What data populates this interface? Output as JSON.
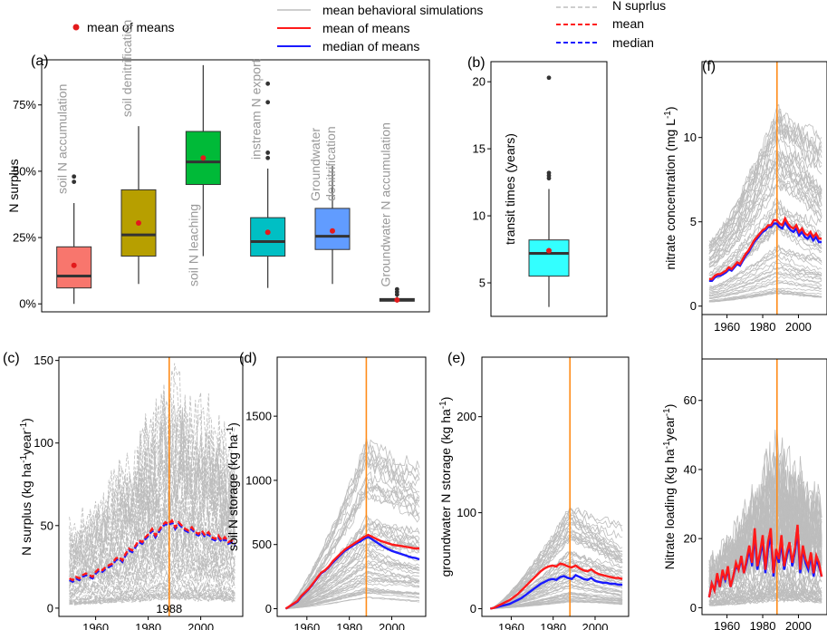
{
  "colors": {
    "sim": "#bdbdbd",
    "mean": "#ff1a1a",
    "median": "#1a1aff",
    "marker": "#ff8c1a",
    "mean_dot": "#e31a1c"
  },
  "legend": {
    "mean_of_means": "mean of  means",
    "sim": "mean behavioral simulations",
    "mean_line": "mean of means",
    "median_line": "median of means",
    "nsurplus": "N suprlus",
    "mean_dash": "mean",
    "median_dash": "median"
  },
  "chart_data": [
    {
      "id": "a",
      "panel_label": "(a)",
      "type": "box",
      "ylabel": "N surplus",
      "ylim": [
        -3,
        92
      ],
      "yticks": [
        0,
        25,
        50,
        75
      ],
      "yticklabels": [
        "0%",
        "25%",
        "50%",
        "75%"
      ],
      "boxes": [
        {
          "label": "soil N accumulation",
          "color": "#f8766d",
          "min": 0,
          "q1": 6,
          "median": 10.5,
          "q3": 21.5,
          "max": 38,
          "mean": 14.5,
          "outliers": [
            46,
            48
          ]
        },
        {
          "label": "soil denitrification",
          "color": "#b79f00",
          "min": 7.5,
          "q1": 18,
          "median": 26,
          "q3": 43,
          "max": 67,
          "mean": 30.5,
          "outliers": []
        },
        {
          "label": "soil N leaching",
          "color": "#00ba38",
          "min": 18,
          "q1": 45,
          "median": 53.5,
          "q3": 65,
          "max": 90,
          "mean": 55,
          "outliers": []
        },
        {
          "label": "instream N export",
          "color": "#00bfc4",
          "min": 6,
          "q1": 18,
          "median": 23.5,
          "q3": 32.5,
          "max": 51,
          "mean": 27,
          "outliers": [
            55,
            57,
            76,
            83
          ]
        },
        {
          "label": "Groundwater denitrification",
          "color": "#619cff",
          "min": 7.5,
          "q1": 20.5,
          "median": 25.5,
          "q3": 36,
          "max": 52,
          "mean": 27.5,
          "outliers": []
        },
        {
          "label": "Groundwater N accumulation",
          "color": "#f564e3",
          "min": 0.5,
          "q1": 1,
          "median": 1.5,
          "q3": 2,
          "max": 3,
          "mean": 1.5,
          "outliers": [
            3.5,
            4.5,
            5.5
          ]
        }
      ]
    },
    {
      "id": "b",
      "panel_label": "(b)",
      "type": "box",
      "ylabel": "transit times (years)",
      "ylim": [
        2.5,
        21.5
      ],
      "yticks": [
        5,
        10,
        15,
        20
      ],
      "boxes": [
        {
          "label": "",
          "color": "#33ffff",
          "min": 3.2,
          "q1": 5.5,
          "median": 7.2,
          "q3": 8.2,
          "max": 12,
          "mean": 7.4,
          "outliers": [
            12.8,
            13,
            13.2,
            20.3
          ]
        }
      ]
    },
    {
      "id": "c",
      "panel_label": "(c)",
      "type": "line",
      "ylabel": "N surplus  (kg  ha-1year-1)",
      "xlim": [
        1946,
        2016
      ],
      "ylim": [
        -5,
        152
      ],
      "yticks": [
        0,
        50,
        100,
        150
      ],
      "xticks": [
        1960,
        1980,
        2000
      ],
      "marker_year": 1988,
      "marker_label": "1988",
      "sim_style": "dashed",
      "curve": {
        "start": 18,
        "peak": 50,
        "end": 40
      },
      "mean_line": [
        18,
        17,
        19,
        18,
        20,
        21,
        20,
        19,
        22,
        24,
        23,
        25,
        26,
        27,
        30,
        31,
        29,
        33,
        36,
        35,
        38,
        41,
        40,
        43,
        45,
        48,
        44,
        47,
        50,
        52,
        51,
        53,
        49,
        52,
        50,
        48,
        47,
        49,
        46,
        45,
        47,
        44,
        46,
        43,
        42,
        44,
        41,
        43,
        40,
        41,
        39
      ],
      "median_line": [
        17,
        16,
        18,
        17,
        19,
        20,
        19,
        18,
        21,
        23,
        22,
        24,
        25,
        26,
        29,
        30,
        28,
        32,
        35,
        34,
        37,
        40,
        39,
        42,
        44,
        47,
        43,
        46,
        49,
        51,
        50,
        52,
        48,
        51,
        49,
        47,
        46,
        48,
        45,
        44,
        46,
        43,
        45,
        42,
        41,
        43,
        40,
        42,
        39,
        40,
        38
      ]
    },
    {
      "id": "d",
      "panel_label": "(d)",
      "type": "line",
      "ylabel": "soil N storage  (kg ha-1)",
      "xlim": [
        1946,
        2016
      ],
      "ylim": [
        -60,
        1960
      ],
      "yticks": [
        0,
        500,
        1000,
        1500
      ],
      "xticks": [
        1960,
        1980,
        2000
      ],
      "marker_year": 1988,
      "sim_style": "solid",
      "curve": {
        "start": 0,
        "peak": 560,
        "end": 470
      },
      "mean_line": [
        0,
        20,
        40,
        60,
        100,
        130,
        160,
        200,
        240,
        280,
        300,
        330,
        370,
        400,
        430,
        460,
        480,
        500,
        520,
        540,
        560,
        575,
        560,
        545,
        530,
        520,
        510,
        500,
        495,
        490,
        485,
        480,
        475,
        470,
        470
      ],
      "median_line": [
        0,
        18,
        36,
        55,
        95,
        125,
        155,
        195,
        235,
        275,
        295,
        325,
        360,
        390,
        420,
        450,
        470,
        490,
        510,
        525,
        545,
        560,
        540,
        520,
        500,
        480,
        465,
        450,
        440,
        430,
        420,
        410,
        400,
        395,
        385
      ]
    },
    {
      "id": "e",
      "panel_label": "(e)",
      "type": "line",
      "ylabel": "groundwater N storage (kg ha-1)",
      "xlim": [
        1946,
        2016
      ],
      "ylim": [
        -8,
        262
      ],
      "yticks": [
        0,
        100,
        200
      ],
      "xticks": [
        1960,
        1980,
        2000
      ],
      "marker_year": 1988,
      "sim_style": "solid",
      "curve": {
        "start": 0,
        "peak": 45,
        "end": 32
      },
      "mean_line": [
        0,
        1,
        3,
        5,
        7,
        9,
        12,
        15,
        19,
        23,
        27,
        31,
        35,
        39,
        42,
        44,
        45,
        44,
        47,
        46,
        44,
        43,
        45,
        42,
        40,
        39,
        41,
        38,
        36,
        35,
        34,
        33,
        32,
        32,
        31
      ],
      "median_line": [
        0,
        1,
        2,
        3,
        4,
        5,
        7,
        9,
        11,
        14,
        17,
        20,
        23,
        26,
        28,
        30,
        31,
        30,
        33,
        34,
        32,
        31,
        35,
        33,
        31,
        30,
        32,
        29,
        28,
        27,
        27,
        26,
        26,
        25,
        25
      ]
    },
    {
      "id": "f1",
      "panel_label": "(f)",
      "type": "line",
      "ylabel": "nitrate concentration (mg L-1)",
      "xlim": [
        1946,
        2016
      ],
      "ylim": [
        -0.5,
        14.5
      ],
      "yticks": [
        0,
        5,
        10
      ],
      "xticks": [
        1960,
        1980,
        2000
      ],
      "marker_year": 1988,
      "sim_style": "solid",
      "curve": {
        "start": 1.6,
        "peak": 5.0,
        "end": 4.0
      },
      "mean_line": [
        1.6,
        1.6,
        1.8,
        1.9,
        1.9,
        2.0,
        2.1,
        2.3,
        2.2,
        2.4,
        2.6,
        2.5,
        2.8,
        3.1,
        3.3,
        3.6,
        3.9,
        4.1,
        4.3,
        4.5,
        4.6,
        4.8,
        4.8,
        5.1,
        5.1,
        4.9,
        4.8,
        5.2,
        4.9,
        4.7,
        4.6,
        4.8,
        4.4,
        4.6,
        4.3,
        4.2,
        4.4,
        4.1,
        4.3,
        4.0,
        4.0
      ],
      "median_line": [
        1.5,
        1.5,
        1.7,
        1.8,
        1.8,
        1.9,
        2.0,
        2.2,
        2.1,
        2.3,
        2.5,
        2.4,
        2.7,
        3.0,
        3.2,
        3.5,
        3.8,
        4.0,
        4.2,
        4.4,
        4.5,
        4.7,
        4.7,
        4.9,
        4.9,
        4.7,
        4.6,
        5.0,
        4.7,
        4.5,
        4.4,
        4.6,
        4.2,
        4.4,
        4.1,
        4.0,
        4.2,
        3.9,
        4.1,
        3.8,
        3.8
      ]
    },
    {
      "id": "f2",
      "panel_label": "",
      "type": "line",
      "ylabel": "Nitrate loading (kg ha-1year-1)",
      "xlim": [
        1946,
        2016
      ],
      "ylim": [
        -2,
        72
      ],
      "yticks": [
        0,
        20,
        40,
        60
      ],
      "xticks": [
        1960,
        1980,
        2000
      ],
      "marker_year": 1988,
      "sim_style": "solid",
      "curve": {
        "start": 5,
        "peak": 17,
        "end": 12
      },
      "mean_line": [
        3,
        7,
        5,
        10,
        6,
        11,
        8,
        12,
        6,
        9,
        13,
        11,
        15,
        10,
        14,
        18,
        13,
        23,
        12,
        16,
        21,
        11,
        19,
        23,
        10,
        17,
        14,
        21,
        12,
        16,
        19,
        13,
        17,
        24,
        11,
        18,
        14,
        12,
        16,
        10,
        15,
        13,
        9
      ],
      "median_line": [
        3,
        7,
        5,
        9,
        6,
        10,
        8,
        11,
        6,
        9,
        12,
        11,
        14,
        10,
        13,
        17,
        12,
        21,
        11,
        15,
        19,
        10,
        17,
        21,
        9,
        16,
        13,
        19,
        11,
        15,
        18,
        12,
        16,
        22,
        10,
        17,
        13,
        11,
        15,
        9,
        14,
        12,
        9
      ]
    }
  ]
}
